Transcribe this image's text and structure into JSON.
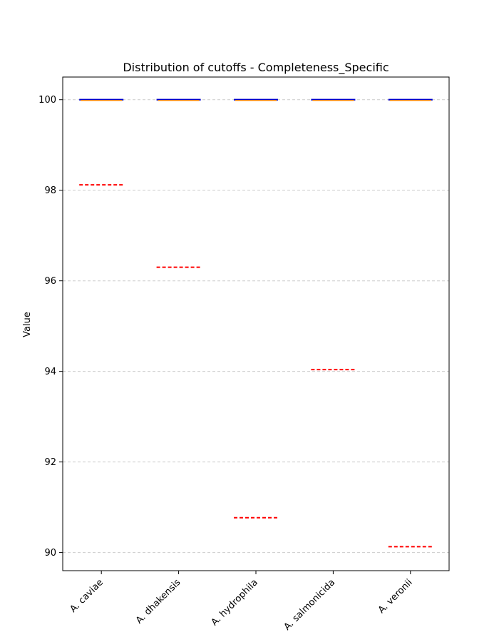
{
  "chart_data": {
    "type": "box",
    "title": "Distribution of cutoffs - Completeness_Specific",
    "xlabel": "",
    "ylabel": "Value",
    "ylim": [
      89.6,
      100.5
    ],
    "yticks": [
      90,
      92,
      94,
      96,
      98,
      100
    ],
    "grid": "horizontal dashed",
    "categories": [
      "A. caviae",
      "A. dhakensis",
      "A. hydrophila",
      "A. salmonicida",
      "A. veronii"
    ],
    "box_values": [
      100,
      100,
      100,
      100,
      100
    ],
    "cutoff_values": [
      98.12,
      96.3,
      90.77,
      94.04,
      90.13
    ],
    "colors": {
      "box_edge": "#0000cc",
      "median": "#ff7f0e",
      "cutoff": "#ff0000",
      "grid": "#cccccc"
    }
  }
}
